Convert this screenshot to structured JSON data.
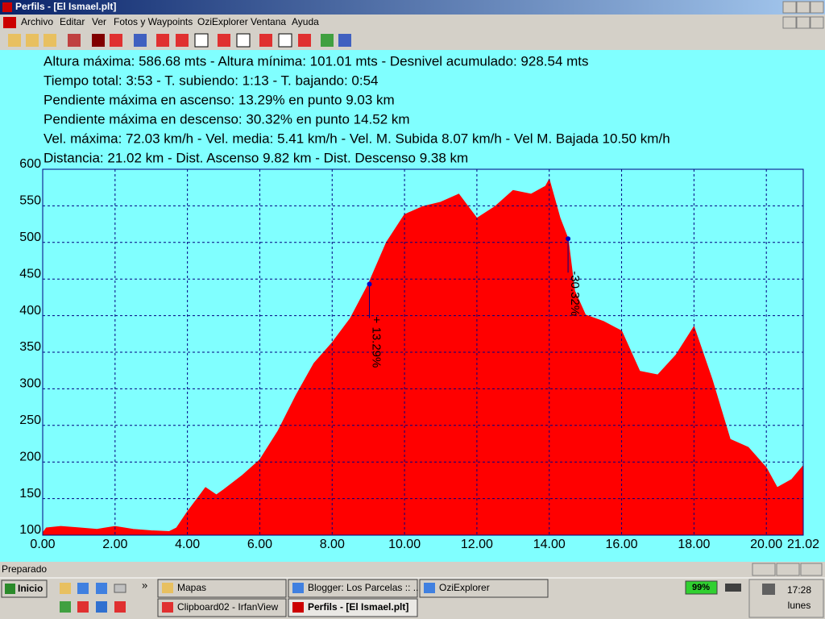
{
  "window": {
    "title": "Perfils - [El Ismael.plt]",
    "menu": [
      "Archivo",
      "Editar",
      "Ver",
      "Fotos y Waypoints",
      "OziExplorer",
      "Ventana",
      "Ayuda"
    ],
    "status": "Preparado"
  },
  "stats": [
    "Altura máxima: 586.68 mts - Altura mínima: 101.01 mts - Desnivel acumulado: 928.54 mts",
    "Tiempo total: 3:53 - T. subiendo: 1:13 - T. bajando: 0:54",
    "Pendiente máxima en ascenso: 13.29% en punto 9.03 km",
    "Pendiente máxima en descenso: 30.32%  en punto 14.52 km",
    "Vel. máxima: 72.03 km/h - Vel. media: 5.41 km/h - Vel. M. Subida 8.07 km/h - Vel M. Bajada 10.50 km/h",
    "Distancia: 21.02 km - Dist. Ascenso 9.82 km - Dist. Descenso 9.38 km"
  ],
  "chart_data": {
    "type": "area",
    "x": [
      0,
      0.1,
      0.5,
      1,
      1.5,
      2,
      2.5,
      3,
      3.5,
      3.7,
      4,
      4.5,
      4.8,
      5,
      5.5,
      6,
      6.5,
      7,
      7.5,
      8,
      8.5,
      9,
      9.5,
      10,
      10.5,
      11,
      11.5,
      12,
      12.5,
      13,
      13.5,
      13.9,
      14,
      14.3,
      14.52,
      14.7,
      15,
      15.5,
      16,
      16.5,
      17,
      17.5,
      18,
      18.5,
      19,
      19.5,
      20,
      20.3,
      20.7,
      21.02
    ],
    "values": [
      103,
      110,
      112,
      110,
      108,
      112,
      108,
      106,
      105,
      110,
      132,
      165,
      155,
      162,
      181,
      203,
      242,
      291,
      335,
      363,
      396,
      443,
      500,
      538,
      549,
      555,
      566,
      533,
      549,
      571,
      566,
      577,
      586,
      533,
      505,
      434,
      401,
      392,
      379,
      324,
      319,
      346,
      385,
      313,
      231,
      220,
      192,
      165,
      176,
      195
    ],
    "color": "#ff0000",
    "xlim": [
      0,
      21.02
    ],
    "xticks": [
      {
        "value": 0,
        "label": "0.00"
      },
      {
        "value": 2,
        "label": "2.00"
      },
      {
        "value": 4,
        "label": "4.00"
      },
      {
        "value": 6,
        "label": "6.00"
      },
      {
        "value": 8,
        "label": "8.00"
      },
      {
        "value": 10,
        "label": "10.00"
      },
      {
        "value": 12,
        "label": "12.00"
      },
      {
        "value": 14,
        "label": "14.00"
      },
      {
        "value": 16,
        "label": "16.00"
      },
      {
        "value": 18,
        "label": "18.00"
      },
      {
        "value": 20,
        "label": "20.00"
      },
      {
        "value": 21.02,
        "label": "21.02"
      }
    ],
    "ylim": [
      100,
      600
    ],
    "yticks": [
      100,
      150,
      200,
      250,
      300,
      350,
      400,
      450,
      500,
      550,
      600
    ],
    "grid": true,
    "annotations": [
      {
        "label": "+ 13.29%",
        "x": 9.03,
        "y": 443
      },
      {
        "label": "-30.32%",
        "x": 14.52,
        "y": 505
      }
    ]
  },
  "taskbar": {
    "start": "Inicio",
    "more": "»",
    "tasks": [
      "Mapas",
      "Blogger: Los Parcelas :: ...",
      "OziExplorer",
      "Clipboard02 - IrfanView",
      "Perfils - [El Ismael.plt]"
    ],
    "battery": "99%",
    "time": "17:28",
    "day": "lunes"
  }
}
